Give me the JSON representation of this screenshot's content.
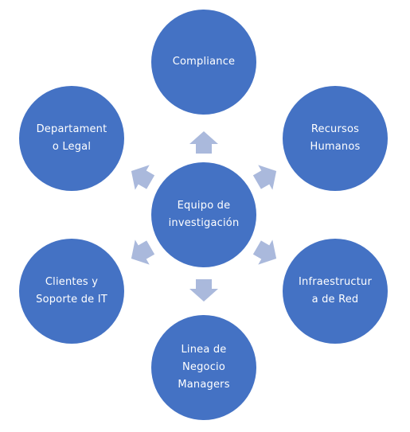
{
  "colors": {
    "node_fill": "#4472c4",
    "node_text": "#ffffff",
    "arrow_fill": "#aab9dc",
    "background": "#ffffff"
  },
  "diagram": {
    "center": {
      "label": "Equipo de\ninvestigación"
    },
    "nodes": [
      {
        "label": "Compliance"
      },
      {
        "label": "Recursos\nHumanos"
      },
      {
        "label": "Infraestructur\na de Red"
      },
      {
        "label": "Linea de\nNegocio\nManagers"
      },
      {
        "label": "Clientes y\nSoporte de IT"
      },
      {
        "label": "Departament\no Legal"
      }
    ]
  }
}
